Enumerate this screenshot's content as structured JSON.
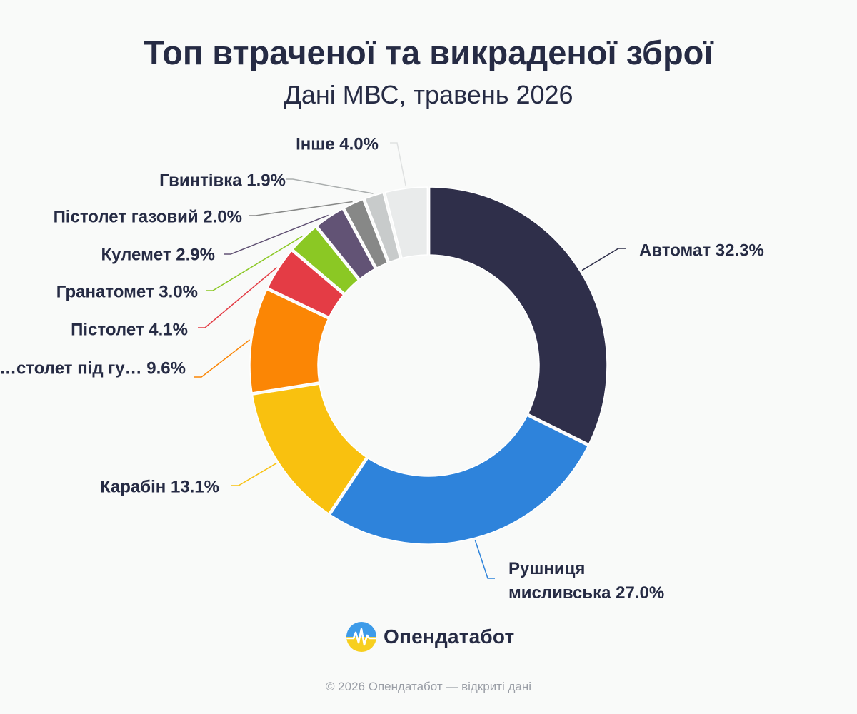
{
  "title": "Топ втраченої та викраденої зброї",
  "subtitle": "Дані МВС, травень 2026",
  "brand": {
    "name": "Опендатабот",
    "logo_icon": "opendatabot-logo-icon"
  },
  "footer": "© 2026 Опендатабот — відкриті дані",
  "chart_data": {
    "type": "pie",
    "donut": true,
    "legend": "none",
    "series": [
      {
        "name": "Автомат",
        "value": 32.3,
        "label": "Автомат 32.3%",
        "color": "#2f2f4a"
      },
      {
        "name": "Рушниця мисливська",
        "value": 27.0,
        "label": "Рушниця мисливська 27.0%",
        "color": "#2e83db"
      },
      {
        "name": "Карабін",
        "value": 13.1,
        "label": "Карабін 13.1%",
        "color": "#f9c10f"
      },
      {
        "name": "Пістолет під гу…",
        "value": 9.6,
        "label": "…столет під гу… 9.6%",
        "color": "#fb8605"
      },
      {
        "name": "Пістолет",
        "value": 4.1,
        "label": "Пістолет 4.1%",
        "color": "#e43c45"
      },
      {
        "name": "Гранатомет",
        "value": 3.0,
        "label": "Гранатомет 3.0%",
        "color": "#8bc824"
      },
      {
        "name": "Кулемет",
        "value": 2.9,
        "label": "Кулемет 2.9%",
        "color": "#625375"
      },
      {
        "name": "Пістолет газовий",
        "value": 2.0,
        "label": "Пістолет газовий 2.0%",
        "color": "#878887"
      },
      {
        "name": "Гвинтівка",
        "value": 1.9,
        "label": "Гвинтівка 1.9%",
        "color": "#c8cbcb"
      },
      {
        "name": "Інше",
        "value": 4.0,
        "label": "Інше 4.0%",
        "color": "#e9ebeb"
      }
    ],
    "label_colors": {
      "Автомат": "#2f2f4a",
      "Рушниця мисливська": "#2e83db",
      "Карабін": "#f9c10f",
      "Пістолет під гу…": "#fb8605",
      "Пістолет": "#e43c45",
      "Гранатомет": "#8bc824",
      "Кулемет": "#625375",
      "Пістолет газовий": "#878887",
      "Гвинтівка": "#aaaeae",
      "Інше": "#dfe1e1"
    }
  }
}
